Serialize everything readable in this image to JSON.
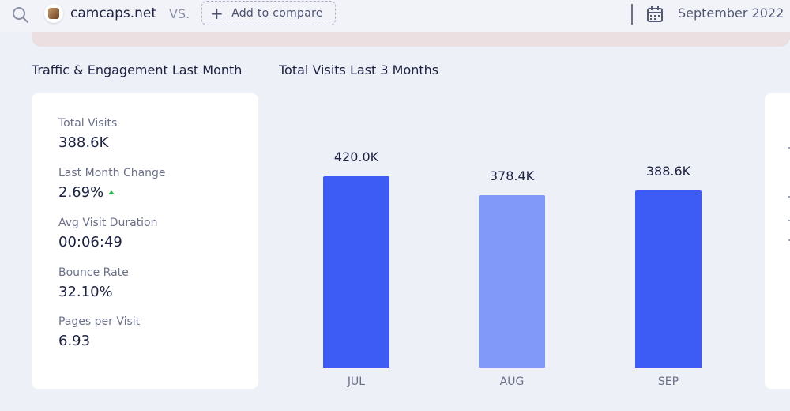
{
  "topbar": {
    "site_name": "camcaps.net",
    "vs_label": "VS.",
    "compare_label": "Add to compare",
    "date_label": "September 2022"
  },
  "sections": {
    "traffic_title": "Traffic & Engagement Last Month",
    "visits_title": "Total Visits Last 3 Months"
  },
  "metrics": [
    {
      "label": "Total Visits",
      "value": "388.6K"
    },
    {
      "label": "Last Month Change",
      "value": "2.69%",
      "trend": "up"
    },
    {
      "label": "Avg Visit Duration",
      "value": "00:06:49"
    },
    {
      "label": "Bounce Rate",
      "value": "32.10%"
    },
    {
      "label": "Pages per Visit",
      "value": "6.93"
    }
  ],
  "chart_data": {
    "type": "bar",
    "title": "Total Visits Last 3 Months",
    "categories": [
      "JUL",
      "AUG",
      "SEP"
    ],
    "values": [
      420.0,
      378.4,
      388.6
    ],
    "value_labels": [
      "420.0K",
      "378.4K",
      "388.6K"
    ],
    "bar_colors": [
      "#3d5cf5",
      "#8199f8",
      "#3d5cf5"
    ],
    "ylim": [
      0,
      420
    ]
  },
  "colors": {
    "accent": "#3d5cf5",
    "accent_light": "#8199f8",
    "positive": "#30b65a"
  }
}
